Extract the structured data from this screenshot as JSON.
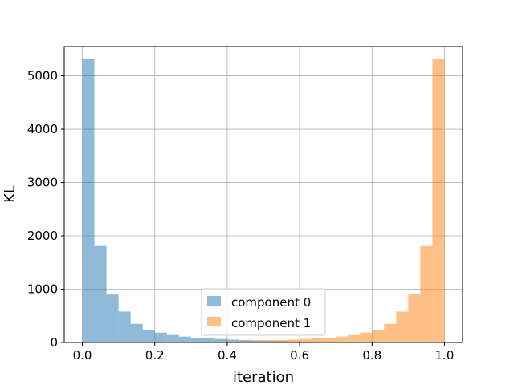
{
  "chart_data": {
    "type": "bar",
    "xlabel": "iteration",
    "ylabel": "KL",
    "xlim": [
      -0.05,
      1.05
    ],
    "ylim": [
      0,
      5550
    ],
    "grid": true,
    "legend_position": "bottom-center",
    "x_ticks": [
      "0.0",
      "0.2",
      "0.4",
      "0.6",
      "0.8",
      "1.0"
    ],
    "y_ticks": [
      "0",
      "1000",
      "2000",
      "3000",
      "4000",
      "5000"
    ],
    "bin_edges": [
      0.0,
      0.0333,
      0.0667,
      0.1,
      0.1333,
      0.1667,
      0.2,
      0.2333,
      0.2667,
      0.3,
      0.3333,
      0.3667,
      0.4,
      0.4333,
      0.4667,
      0.5,
      0.5333,
      0.5667,
      0.6,
      0.6333,
      0.6667,
      0.7,
      0.7333,
      0.7667,
      0.8,
      0.8333,
      0.8667,
      0.9,
      0.9333,
      0.9667,
      1.0
    ],
    "series": [
      {
        "name": "component 0",
        "color": "#1f77b4",
        "values": [
          5320,
          1810,
          900,
          580,
          350,
          240,
          185,
          140,
          110,
          90,
          75,
          65,
          55,
          45,
          40,
          35,
          30,
          25,
          20,
          18,
          15,
          12,
          10,
          8,
          6,
          5,
          4,
          3,
          2,
          1
        ]
      },
      {
        "name": "component 1",
        "color": "#ff7f0e",
        "values": [
          1,
          2,
          3,
          4,
          5,
          6,
          8,
          10,
          12,
          15,
          18,
          20,
          25,
          30,
          35,
          40,
          45,
          55,
          65,
          75,
          90,
          110,
          140,
          185,
          240,
          350,
          580,
          900,
          1810,
          5320
        ]
      }
    ]
  }
}
